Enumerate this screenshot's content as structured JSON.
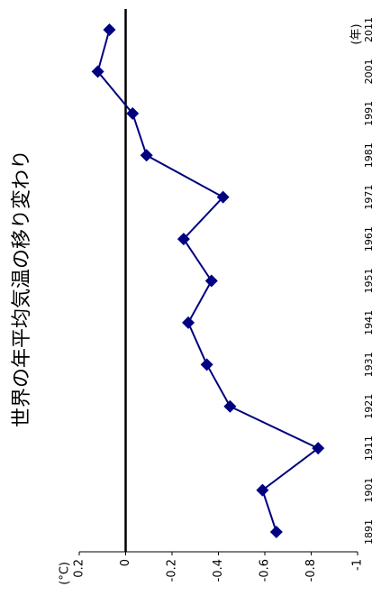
{
  "chart_data": {
    "type": "line",
    "title": "世界の年平均気温の移り変わり",
    "x_label": "(年)",
    "y_label": "(°C)",
    "x": [
      1891,
      1901,
      1911,
      1921,
      1931,
      1941,
      1951,
      1961,
      1971,
      1981,
      1991,
      2001,
      2011
    ],
    "series": [
      {
        "color": "#000080",
        "values": [
          -0.65,
          -0.59,
          -0.83,
          -0.45,
          -0.35,
          -0.27,
          -0.37,
          -0.25,
          -0.42,
          -0.09,
          -0.03,
          0.12,
          0.07
        ]
      }
    ],
    "xlim": [
      1891,
      2011
    ],
    "xticks": [
      1891,
      1901,
      1911,
      1921,
      1931,
      1941,
      1951,
      1961,
      1971,
      1981,
      1991,
      2001,
      2011
    ],
    "ylim": [
      -1,
      0.2
    ],
    "yticks": [
      0.2,
      0,
      -0.2,
      -0.4,
      -0.6,
      -0.8,
      -1
    ]
  }
}
